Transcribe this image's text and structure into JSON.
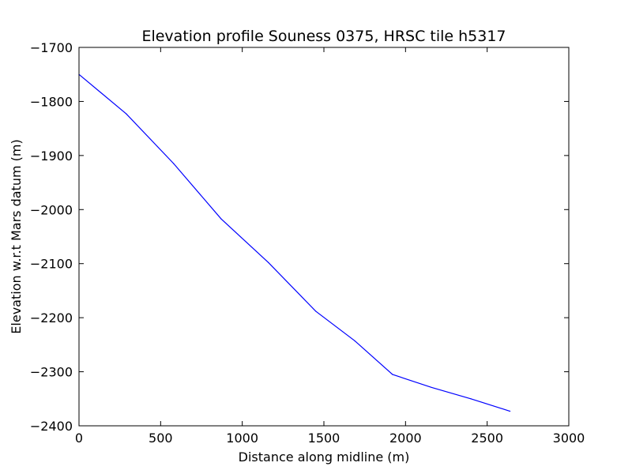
{
  "chart_data": {
    "type": "line",
    "title": "Elevation profile Souness 0375, HRSC tile h5317",
    "xlabel": "Distance along midline (m)",
    "ylabel": "Elevation w.r.t Mars datum (m)",
    "xlim": [
      0,
      3000
    ],
    "ylim": [
      -2400,
      -1700
    ],
    "xticks": [
      0,
      500,
      1000,
      1500,
      2000,
      2500,
      3000
    ],
    "yticks": [
      -1700,
      -1800,
      -1900,
      -2000,
      -2100,
      -2200,
      -2300,
      -2400
    ],
    "xtick_labels": [
      "0",
      "500",
      "1000",
      "1500",
      "2000",
      "2500",
      "3000"
    ],
    "ytick_labels": [
      "−1700",
      "−1800",
      "−1900",
      "−2000",
      "−2100",
      "−2200",
      "−2300",
      "−2400"
    ],
    "grid": false,
    "series": [
      {
        "color": "#0000ff",
        "x": [
          0,
          290,
          580,
          870,
          1160,
          1450,
          1690,
          1920,
          2160,
          2400,
          2640
        ],
        "y": [
          -1750,
          -1823,
          -1915,
          -2017,
          -2098,
          -2188,
          -2243,
          -2305,
          -2329,
          -2350,
          -2373
        ]
      }
    ]
  }
}
